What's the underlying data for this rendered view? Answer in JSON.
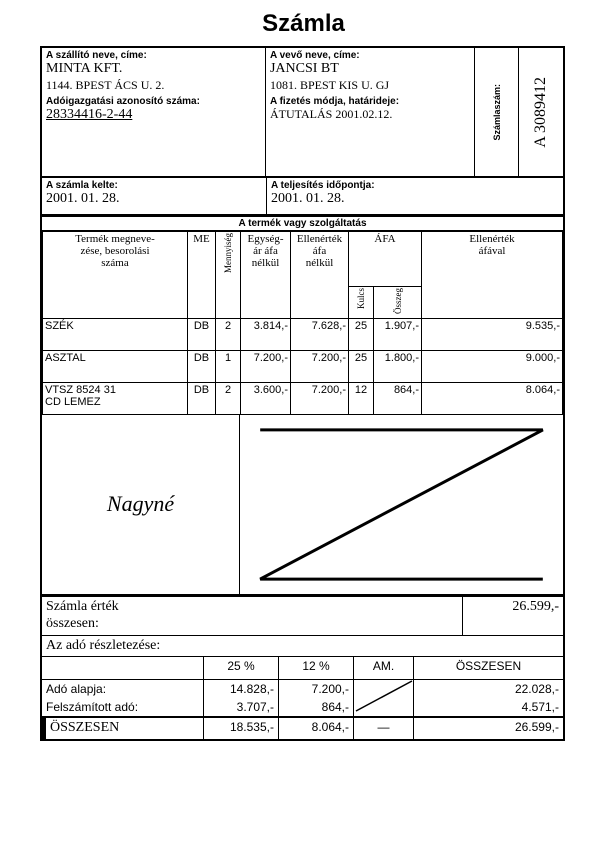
{
  "title": "Számla",
  "supplier": {
    "label_name": "A szállító neve, címe:",
    "name": "MINTA KFT.",
    "address": "1144. BPEST ÁCS U. 2.",
    "label_tax": "Adóigazgatási azonosító száma:",
    "tax_id": "28334416-2-44"
  },
  "buyer": {
    "label_name": "A vevő neve, címe:",
    "name": "JANCSI BT",
    "address": "1081. BPEST KIS U. GJ",
    "label_pay": "A fizetés módja, határideje:",
    "pay": "ÁTUTALÁS 2001.02.12."
  },
  "invoice_no": {
    "label": "Számlaszám:",
    "value": "A 3089412"
  },
  "dates": {
    "issue_label": "A számla kelte:",
    "issue": "2001. 01. 28.",
    "perf_label": "A teljesítés időpontja:",
    "perf": "2001. 01. 28."
  },
  "section_label": "A termék vagy szolgáltatás",
  "columns": {
    "name": "Termék megneve-\nzése, besorolási\nszáma",
    "me": "ME",
    "qty": "Mennyiség",
    "unit": "Egység-\nár áfa\nnélkül",
    "net": "Ellenérték\náfa\nnélkül",
    "vat_group": "ÁFA",
    "vat_rate": "Kulcs",
    "vat_amt": "Összeg",
    "gross": "Ellenérték\náfával"
  },
  "items": [
    {
      "name": "SZÉK",
      "me": "DB",
      "qty": "2",
      "unit": "3.814,-",
      "net": "7.628,-",
      "rate": "25",
      "vat": "1.907,-",
      "gross": "9.535,-"
    },
    {
      "name": "ASZTAL",
      "me": "DB",
      "qty": "1",
      "unit": "7.200,-",
      "net": "7.200,-",
      "rate": "25",
      "vat": "1.800,-",
      "gross": "9.000,-"
    },
    {
      "name": "VTSZ 8524 31\nCD LEMEZ",
      "me": "DB",
      "qty": "2",
      "unit": "3.600,-",
      "net": "7.200,-",
      "rate": "12",
      "vat": "864,-",
      "gross": "8.064,-"
    }
  ],
  "signature": "Nagyné",
  "totals": {
    "sum_label": "Számla érték\nösszesen:",
    "sum": "26.599,-",
    "breakdown_label": "Az adó részletezése:",
    "cols": {
      "c25": "25 %",
      "c12": "12 %",
      "am": "AM.",
      "total": "ÖSSZESEN"
    },
    "rows": {
      "base_label": "Adó alapja:",
      "base": {
        "c25": "14.828,-",
        "c12": "7.200,-",
        "am": "",
        "total": "22.028,-"
      },
      "vat_label": "Felszámított adó:",
      "vat": {
        "c25": "3.707,-",
        "c12": "864,-",
        "am": "",
        "total": "4.571,-"
      },
      "sum_label": "ÖSSZESEN",
      "sum": {
        "c25": "18.535,-",
        "c12": "8.064,-",
        "am": "—",
        "total": "26.599,-"
      }
    }
  },
  "colors": {
    "ink": "#000000",
    "paper": "#ffffff"
  }
}
